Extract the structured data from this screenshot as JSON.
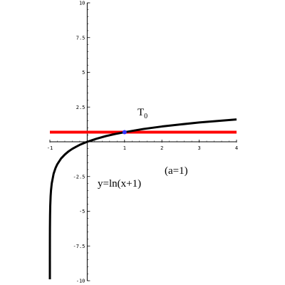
{
  "chart_data": {
    "type": "line",
    "title": "",
    "xlabel": "",
    "ylabel": "",
    "xlim": [
      -1,
      4
    ],
    "ylim": [
      -10,
      10
    ],
    "x_ticks": [
      -1,
      1,
      2,
      3,
      4
    ],
    "x_tick_labels": [
      "-1",
      "1",
      "2",
      "3",
      "4"
    ],
    "y_ticks": [
      10,
      7.5,
      5,
      2.5,
      -2.5,
      -5,
      -7.5,
      -10
    ],
    "y_tick_labels": [
      "10",
      "7.5",
      "5",
      "2.5",
      "-2.5",
      "-5",
      "-7.5",
      "-10"
    ],
    "grid": false,
    "series": [
      {
        "name": "y=ln(x+1)",
        "color": "#000000",
        "x": [
          -0.99995,
          -0.9999,
          -0.9998,
          -0.9995,
          -0.999,
          -0.998,
          -0.995,
          -0.99,
          -0.98,
          -0.97,
          -0.95,
          -0.9,
          -0.85,
          -0.8,
          -0.7,
          -0.6,
          -0.5,
          -0.4,
          -0.3,
          -0.2,
          -0.1,
          0,
          0.25,
          0.5,
          0.75,
          1,
          1.5,
          2,
          2.5,
          3,
          3.5,
          4
        ],
        "y": [
          -9.9,
          -9.21,
          -8.52,
          -7.6,
          -6.91,
          -6.21,
          -5.3,
          -4.61,
          -3.91,
          -3.51,
          -3.0,
          -2.3,
          -1.9,
          -1.61,
          -1.2,
          -0.92,
          -0.69,
          -0.51,
          -0.36,
          -0.22,
          -0.11,
          0,
          0.22,
          0.41,
          0.56,
          0.69,
          0.92,
          1.1,
          1.25,
          1.39,
          1.5,
          1.61
        ]
      },
      {
        "name": "T0",
        "color": "#ff0000",
        "x": [
          -1,
          4
        ],
        "y": [
          0.69,
          0.69
        ]
      }
    ],
    "points": [
      {
        "x": 1,
        "y": 0.69,
        "color": "#3333ff"
      }
    ],
    "annotations": {
      "tangent_label": "T",
      "tangent_subscript": "0",
      "a_label": "(a=1)",
      "curve_label": "y=ln(x+1)"
    }
  }
}
